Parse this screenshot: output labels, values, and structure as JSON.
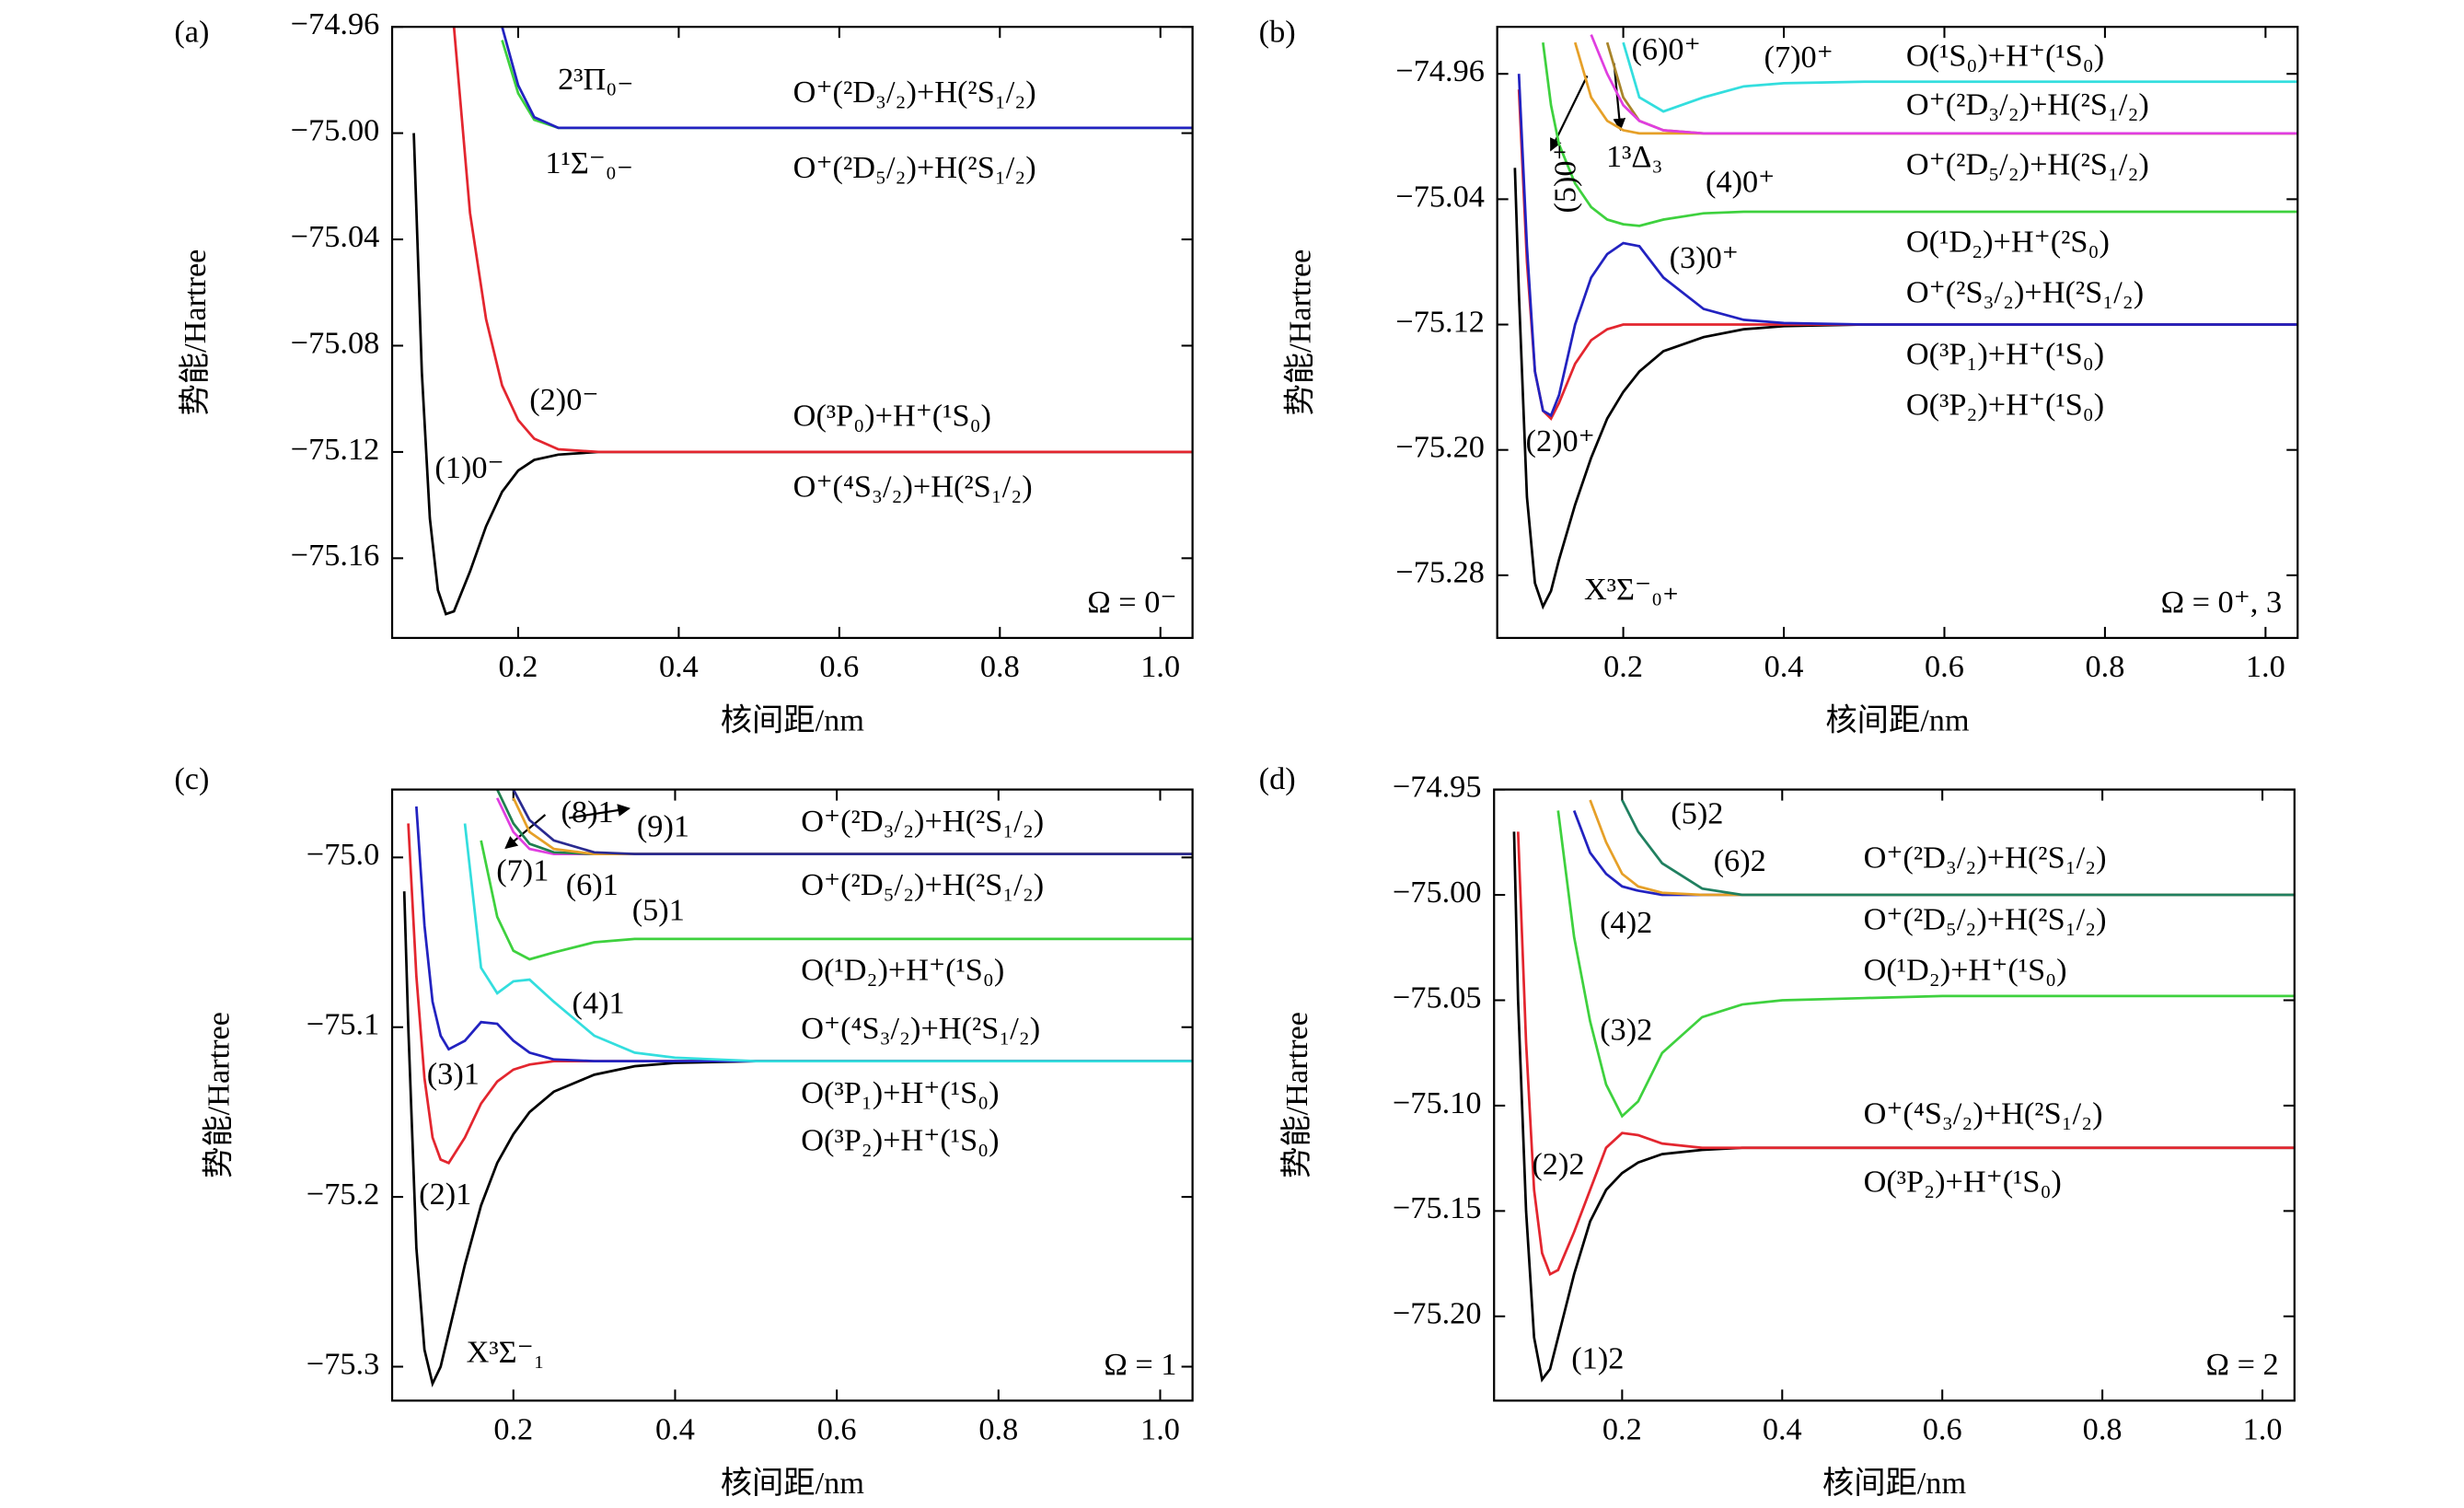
{
  "chart_data": [
    {
      "type": "line",
      "title": "(a)",
      "xlabel": "核间距/nm",
      "ylabel": "势能/Hartree",
      "x": [
        0.065,
        0.07,
        0.08,
        0.09,
        0.1,
        0.11,
        0.12,
        0.14,
        0.16,
        0.18,
        0.2,
        0.22,
        0.25,
        0.3,
        0.35,
        0.4,
        0.5,
        0.6,
        0.8,
        1.04
      ],
      "xlim": [
        0.043,
        1.04
      ],
      "ylim": [
        -75.19,
        -74.96
      ],
      "xticks": [
        0.2,
        0.4,
        0.6,
        0.8,
        {
          "value": 1.0,
          "label": "1.0"
        }
      ],
      "yticks": [
        {
          "value": -74.96,
          "label": "−74.96"
        },
        {
          "value": -75.0,
          "label": "−75.00"
        },
        {
          "value": -75.04,
          "label": "−75.04"
        },
        {
          "value": -75.08,
          "label": "−75.08"
        },
        {
          "value": -75.12,
          "label": "−75.12"
        },
        {
          "value": -75.16,
          "label": "−75.16"
        }
      ],
      "series": [
        {
          "name": "(1)0⁻",
          "color": "#000000",
          "values": [
            null,
            -75.0,
            -75.09,
            -75.145,
            -75.172,
            -75.181,
            -75.18,
            -75.165,
            -75.148,
            -75.135,
            -75.127,
            -75.123,
            -75.121,
            -75.12,
            -75.12,
            -75.12,
            -75.12,
            -75.12,
            -75.12,
            -75.12
          ]
        },
        {
          "name": "(2)0⁻",
          "color": "#e3262f",
          "values": [
            null,
            null,
            null,
            null,
            null,
            null,
            -74.96,
            -75.03,
            -75.07,
            -75.095,
            -75.108,
            -75.115,
            -75.119,
            -75.12,
            -75.12,
            -75.12,
            -75.12,
            -75.12,
            -75.12,
            -75.12
          ]
        },
        {
          "name": "1¹Σ⁻₀₋",
          "color": "#3ed13e",
          "values": [
            null,
            null,
            null,
            null,
            null,
            null,
            null,
            null,
            null,
            -74.965,
            -74.985,
            -74.995,
            -74.998,
            -74.998,
            -74.998,
            -74.998,
            -74.998,
            -74.998,
            -74.998,
            -74.998
          ]
        },
        {
          "name": "2³Π₀₋",
          "color": "#2222c0",
          "values": [
            null,
            null,
            null,
            null,
            null,
            null,
            null,
            null,
            null,
            -74.96,
            -74.982,
            -74.994,
            -74.998,
            -74.998,
            -74.998,
            -74.998,
            -74.998,
            -74.998,
            -74.998,
            -74.998
          ]
        }
      ],
      "annotations": [
        "O⁺(²D₃/₂)+H(²S₁/₂)",
        "O⁺(²D₅/₂)+H(²S₁/₂)",
        "O(³P₀)+H⁺(¹S₀)",
        "O⁺(⁴S₃/₂)+H(²S₁/₂)",
        "Ω = 0⁻"
      ]
    },
    {
      "type": "line",
      "title": "(b)",
      "xlabel": "核间距/nm",
      "ylabel": "势能/Hartree",
      "x": [
        0.065,
        0.07,
        0.08,
        0.09,
        0.1,
        0.11,
        0.12,
        0.14,
        0.16,
        0.18,
        0.2,
        0.22,
        0.25,
        0.3,
        0.35,
        0.4,
        0.5,
        0.6,
        0.8,
        1.04
      ],
      "xlim": [
        0.043,
        1.04
      ],
      "ylim": [
        -75.32,
        -74.93
      ],
      "xticks": [
        0.2,
        0.4,
        0.6,
        0.8,
        {
          "value": 1.0,
          "label": "1.0"
        }
      ],
      "yticks": [
        {
          "value": -74.96,
          "label": "−74.96"
        },
        {
          "value": -75.04,
          "label": "−75.04"
        },
        {
          "value": -75.12,
          "label": "−75.12"
        },
        {
          "value": -75.2,
          "label": "−75.20"
        },
        {
          "value": -75.28,
          "label": "−75.28"
        }
      ],
      "series": [
        {
          "name": "X³Σ⁻₀₊",
          "color": "#000000",
          "values": [
            -75.02,
            -75.1,
            -75.23,
            -75.285,
            -75.3,
            -75.29,
            -75.27,
            -75.235,
            -75.205,
            -75.18,
            -75.163,
            -75.15,
            -75.137,
            -75.128,
            -75.123,
            -75.121,
            -75.12,
            -75.12,
            -75.12,
            -75.12
          ]
        },
        {
          "name": "(2)0⁺",
          "color": "#e3262f",
          "values": [
            null,
            -74.97,
            -75.08,
            -75.15,
            -75.175,
            -75.18,
            -75.17,
            -75.145,
            -75.13,
            -75.123,
            -75.12,
            -75.12,
            -75.12,
            -75.12,
            -75.12,
            -75.12,
            -75.12,
            -75.12,
            -75.12,
            -75.12
          ]
        },
        {
          "name": "(3)0⁺",
          "color": "#2222c0",
          "values": [
            null,
            -74.96,
            -75.07,
            -75.15,
            -75.175,
            -75.178,
            -75.165,
            -75.12,
            -75.09,
            -75.075,
            -75.068,
            -75.07,
            -75.09,
            -75.11,
            -75.117,
            -75.119,
            -75.12,
            -75.12,
            -75.12,
            -75.12
          ]
        },
        {
          "name": "(4)0⁺",
          "color": "#3ed13e",
          "values": [
            null,
            null,
            null,
            null,
            -74.94,
            -74.98,
            -75.005,
            -75.03,
            -75.045,
            -75.053,
            -75.056,
            -75.057,
            -75.053,
            -75.049,
            -75.048,
            -75.048,
            -75.048,
            -75.048,
            -75.048,
            -75.048
          ]
        },
        {
          "name": "(5)0⁺",
          "color": "#e6a028",
          "values": [
            null,
            null,
            null,
            null,
            null,
            null,
            null,
            -74.94,
            -74.975,
            -74.99,
            -74.996,
            -74.998,
            -74.998,
            -74.998,
            -74.998,
            -74.998,
            -74.998,
            -74.998,
            -74.998,
            -74.998
          ]
        },
        {
          "name": "1³Δ₃",
          "color": "#a8842a",
          "values": [
            null,
            null,
            null,
            null,
            null,
            null,
            null,
            null,
            null,
            -74.94,
            -74.975,
            -74.99,
            -74.996,
            -74.998,
            -74.998,
            -74.998,
            -74.998,
            -74.998,
            -74.998,
            -74.998
          ]
        },
        {
          "name": "(6)0⁺",
          "color": "#e03ee0",
          "values": [
            null,
            null,
            null,
            null,
            null,
            null,
            null,
            null,
            -74.935,
            -74.96,
            -74.98,
            -74.99,
            -74.996,
            -74.998,
            -74.998,
            -74.998,
            -74.998,
            -74.998,
            -74.998,
            -74.998
          ]
        },
        {
          "name": "(7)0⁺",
          "color": "#33dede",
          "values": [
            null,
            null,
            null,
            null,
            null,
            null,
            null,
            null,
            null,
            null,
            -74.94,
            -74.975,
            -74.984,
            -74.975,
            -74.968,
            -74.966,
            -74.965,
            -74.965,
            -74.965,
            -74.965
          ]
        }
      ],
      "annotations": [
        "O(¹S₀)+H⁺(¹S₀)",
        "O⁺(²D₃/₂)+H(²S₁/₂)",
        "O⁺(²D₅/₂)+H(²S₁/₂)",
        "O(¹D₂)+H⁺(²S₀)",
        "O⁺(²S₃/₂)+H(²S₁/₂)",
        "O(³P₁)+H⁺(¹S₀)",
        "O(³P₂)+H⁺(¹S₀)",
        "Ω = 0⁺, 3"
      ]
    },
    {
      "type": "line",
      "title": "(c)",
      "xlabel": "核间距/nm",
      "ylabel": "势能/Hartree",
      "x": [
        0.065,
        0.07,
        0.08,
        0.09,
        0.1,
        0.11,
        0.12,
        0.14,
        0.16,
        0.18,
        0.2,
        0.22,
        0.25,
        0.3,
        0.35,
        0.4,
        0.5,
        0.6,
        0.8,
        1.04
      ],
      "xlim": [
        0.05,
        1.04
      ],
      "ylim": [
        -75.32,
        -74.96
      ],
      "xticks": [
        0.2,
        0.4,
        0.6,
        0.8,
        {
          "value": 1.0,
          "label": "1.0"
        }
      ],
      "yticks": [
        {
          "value": -75.0,
          "label": "−75.0"
        },
        {
          "value": -75.1,
          "label": "−75.1"
        },
        {
          "value": -75.2,
          "label": "−75.2"
        },
        {
          "value": -75.3,
          "label": "−75.3"
        }
      ],
      "series": [
        {
          "name": "X³Σ⁻₁",
          "color": "#000000",
          "values": [
            -75.02,
            -75.1,
            -75.23,
            -75.29,
            -75.31,
            -75.3,
            -75.28,
            -75.24,
            -75.205,
            -75.18,
            -75.163,
            -75.15,
            -75.138,
            -75.128,
            -75.123,
            -75.121,
            -75.12,
            -75.12,
            -75.12,
            -75.12
          ]
        },
        {
          "name": "(2)1",
          "color": "#e3262f",
          "values": [
            null,
            -74.98,
            -75.07,
            -75.13,
            -75.165,
            -75.178,
            -75.18,
            -75.165,
            -75.145,
            -75.132,
            -75.125,
            -75.122,
            -75.12,
            -75.12,
            -75.12,
            -75.12,
            -75.12,
            -75.12,
            -75.12,
            -75.12
          ]
        },
        {
          "name": "(3)1",
          "color": "#2222c0",
          "values": [
            null,
            null,
            -74.97,
            -75.04,
            -75.085,
            -75.105,
            -75.113,
            -75.108,
            -75.097,
            -75.098,
            -75.108,
            -75.115,
            -75.119,
            -75.12,
            -75.12,
            -75.12,
            -75.12,
            -75.12,
            -75.12,
            -75.12
          ]
        },
        {
          "name": "(4)1",
          "color": "#33dede",
          "values": [
            null,
            null,
            null,
            null,
            null,
            null,
            null,
            -74.98,
            -75.065,
            -75.08,
            -75.073,
            -75.072,
            -75.085,
            -75.105,
            -75.115,
            -75.118,
            -75.12,
            -75.12,
            -75.12,
            -75.12
          ]
        },
        {
          "name": "(5)1",
          "color": "#3ed13e",
          "values": [
            null,
            null,
            null,
            null,
            null,
            null,
            null,
            null,
            -74.99,
            -75.035,
            -75.055,
            -75.06,
            -75.056,
            -75.05,
            -75.048,
            -75.048,
            -75.048,
            -75.048,
            -75.048,
            -75.048
          ]
        },
        {
          "name": "(6)1",
          "color": "#e03ee0",
          "values": [
            null,
            null,
            null,
            null,
            null,
            null,
            null,
            null,
            null,
            -74.965,
            -74.985,
            -74.995,
            -74.998,
            -74.998,
            -74.998,
            -74.998,
            -74.998,
            -74.998,
            -74.998,
            -74.998
          ]
        },
        {
          "name": "(7)1",
          "color": "#208050",
          "values": [
            null,
            null,
            null,
            null,
            null,
            null,
            null,
            null,
            null,
            -74.96,
            -74.98,
            -74.992,
            -74.997,
            -74.998,
            -74.998,
            -74.998,
            -74.998,
            -74.998,
            -74.998,
            -74.998
          ]
        },
        {
          "name": "(8)1",
          "color": "#e6a028",
          "values": [
            null,
            null,
            null,
            null,
            null,
            null,
            null,
            null,
            null,
            null,
            -74.965,
            -74.985,
            -74.995,
            -74.998,
            -74.998,
            -74.998,
            -74.998,
            -74.998,
            -74.998,
            -74.998
          ]
        },
        {
          "name": "(9)1",
          "color": "#2a2a90",
          "values": [
            null,
            null,
            null,
            null,
            null,
            null,
            null,
            null,
            null,
            null,
            -74.96,
            -74.978,
            -74.99,
            -74.997,
            -74.998,
            -74.998,
            -74.998,
            -74.998,
            -74.998,
            -74.998
          ]
        }
      ],
      "annotations": [
        "O⁺(²D₃/₂)+H(²S₁/₂)",
        "O⁺(²D₅/₂)+H(²S₁/₂)",
        "O(¹D₂)+H⁺(¹S₀)",
        "O⁺(⁴S₃/₂)+H(²S₁/₂)",
        "O(³P₁)+H⁺(¹S₀)",
        "O(³P₂)+H⁺(¹S₀)",
        "Ω = 1"
      ]
    },
    {
      "type": "line",
      "title": "(d)",
      "xlabel": "核间距/nm",
      "ylabel": "势能/Hartree",
      "x": [
        0.065,
        0.07,
        0.08,
        0.09,
        0.1,
        0.11,
        0.12,
        0.14,
        0.16,
        0.18,
        0.2,
        0.22,
        0.25,
        0.3,
        0.35,
        0.4,
        0.5,
        0.6,
        0.8,
        1.04
      ],
      "xlim": [
        0.04,
        1.04
      ],
      "ylim": [
        -75.24,
        -74.95
      ],
      "xticks": [
        0.2,
        0.4,
        0.6,
        0.8,
        {
          "value": 1.0,
          "label": "1.0"
        }
      ],
      "yticks": [
        {
          "value": -74.95,
          "label": "−74.95"
        },
        {
          "value": -75.0,
          "label": "−75.00"
        },
        {
          "value": -75.05,
          "label": "−75.05"
        },
        {
          "value": -75.1,
          "label": "−75.10"
        },
        {
          "value": -75.15,
          "label": "−75.15"
        },
        {
          "value": -75.2,
          "label": "−75.20"
        }
      ],
      "series": [
        {
          "name": "(1)2",
          "color": "#000000",
          "values": [
            -74.97,
            -75.05,
            -75.15,
            -75.21,
            -75.23,
            -75.225,
            -75.21,
            -75.18,
            -75.155,
            -75.14,
            -75.132,
            -75.127,
            -75.123,
            -75.121,
            -75.12,
            -75.12,
            -75.12,
            -75.12,
            -75.12,
            -75.12
          ]
        },
        {
          "name": "(2)2",
          "color": "#e3262f",
          "values": [
            null,
            -74.97,
            -75.07,
            -75.14,
            -75.17,
            -75.18,
            -75.178,
            -75.16,
            -75.14,
            -75.12,
            -75.113,
            -75.114,
            -75.118,
            -75.12,
            -75.12,
            -75.12,
            -75.12,
            -75.12,
            -75.12,
            -75.12
          ]
        },
        {
          "name": "(3)2",
          "color": "#3ed13e",
          "values": [
            null,
            null,
            null,
            null,
            null,
            null,
            -74.96,
            -75.02,
            -75.06,
            -75.09,
            -75.105,
            -75.098,
            -75.075,
            -75.058,
            -75.052,
            -75.05,
            -75.049,
            -75.048,
            -75.048,
            -75.048
          ]
        },
        {
          "name": "(4)2",
          "color": "#2222c0",
          "values": [
            null,
            null,
            null,
            null,
            null,
            null,
            null,
            -74.96,
            -74.98,
            -74.99,
            -74.996,
            -74.998,
            -75.0,
            -75.0,
            -75.0,
            -75.0,
            -75.0,
            -75.0,
            -75.0,
            -75.0
          ]
        },
        {
          "name": "(5)2",
          "color": "#e6a028",
          "values": [
            null,
            null,
            null,
            null,
            null,
            null,
            null,
            null,
            -74.955,
            -74.975,
            -74.99,
            -74.996,
            -74.999,
            -75.0,
            -75.0,
            -75.0,
            -75.0,
            -75.0,
            -75.0,
            -75.0
          ]
        },
        {
          "name": "(6)2",
          "color": "#208060",
          "values": [
            null,
            null,
            null,
            null,
            null,
            null,
            null,
            null,
            null,
            null,
            -74.955,
            -74.97,
            -74.985,
            -74.997,
            -75.0,
            -75.0,
            -75.0,
            -75.0,
            -75.0,
            -75.0
          ]
        }
      ],
      "annotations": [
        "O⁺(²D₃/₂)+H(²S₁/₂)",
        "O⁺(²D₅/₂)+H(²S₁/₂)",
        "O(¹D₂)+H⁺(¹S₀)",
        "O⁺(⁴S₃/₂)+H(²S₁/₂)",
        "O(³P₂)+H⁺(¹S₀)",
        "Ω = 2"
      ]
    }
  ]
}
